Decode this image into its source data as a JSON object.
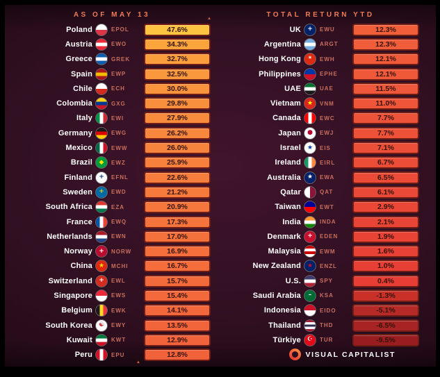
{
  "header": {
    "left": "AS OF MAY 13",
    "right": "TOTAL RETURN YTD"
  },
  "footer": {
    "brand": "VISUAL CAPITALIST"
  },
  "decor": {
    "top_arrow": "▲",
    "bottom_arrow": "▲"
  },
  "colors": {
    "background": "#311022",
    "header_text": "#ef7c58",
    "country_text": "#ffffff",
    "ticker_text": "#c86e5e",
    "pill_border": "#6f1d15",
    "pill_text": "#33130a"
  },
  "chart_data": {
    "type": "table",
    "title": "Country ETF Total Returns YTD",
    "as_of_label": "AS OF MAY 13",
    "value_label": "TOTAL RETURN YTD",
    "columns": [
      "country",
      "ticker",
      "total_return_ytd"
    ],
    "left": [
      {
        "country": "Poland",
        "ticker": "EPOL",
        "value": 47.6,
        "display": "47.6%",
        "color": "#fcc440",
        "flag": {
          "dir": "h",
          "colors": [
            "#ffffff",
            "#dc3545"
          ]
        }
      },
      {
        "country": "Austria",
        "ticker": "EWO",
        "value": 34.3,
        "display": "34.3%",
        "color": "#faa43c",
        "flag": {
          "dir": "h",
          "colors": [
            "#ed2939",
            "#ffffff",
            "#ed2939"
          ]
        }
      },
      {
        "country": "Greece",
        "ticker": "GREK",
        "value": 32.7,
        "display": "32.7%",
        "color": "#fa9d3c",
        "flag": {
          "dir": "h",
          "colors": [
            "#0d5eaf",
            "#ffffff",
            "#0d5eaf"
          ]
        }
      },
      {
        "country": "Spain",
        "ticker": "EWP",
        "value": 32.5,
        "display": "32.5%",
        "color": "#f9983c",
        "flag": {
          "dir": "h",
          "colors": [
            "#aa151b",
            "#f1bf00",
            "#aa151b"
          ]
        }
      },
      {
        "country": "Chile",
        "ticker": "ECH",
        "value": 30.0,
        "display": "30.0%",
        "color": "#f9933c",
        "flag": {
          "dir": "h",
          "colors": [
            "#ffffff",
            "#d52b1e"
          ]
        }
      },
      {
        "country": "Colombia",
        "ticker": "GXG",
        "value": 29.8,
        "display": "29.8%",
        "color": "#f88f3c",
        "flag": {
          "dir": "h",
          "colors": [
            "#fcd116",
            "#003893",
            "#ce1126"
          ]
        }
      },
      {
        "country": "Italy",
        "ticker": "EWI",
        "value": 27.9,
        "display": "27.9%",
        "color": "#f88b3c",
        "flag": {
          "dir": "v",
          "colors": [
            "#009246",
            "#ffffff",
            "#ce2b37"
          ]
        }
      },
      {
        "country": "Germany",
        "ticker": "EWG",
        "value": 26.2,
        "display": "26.2%",
        "color": "#f7873c",
        "flag": {
          "dir": "h",
          "colors": [
            "#1a1a1a",
            "#dd0000",
            "#ffce00"
          ]
        }
      },
      {
        "country": "Mexico",
        "ticker": "EWW",
        "value": 26.0,
        "display": "26.0%",
        "color": "#f7843c",
        "flag": {
          "dir": "v",
          "colors": [
            "#006847",
            "#ffffff",
            "#ce1126"
          ]
        }
      },
      {
        "country": "Brazil",
        "ticker": "EWZ",
        "value": 25.9,
        "display": "25.9%",
        "color": "#f7813c",
        "flag": {
          "dir": "h",
          "colors": [
            "#009c3b"
          ],
          "symbol": "◆",
          "symbolColor": "#ffdf00"
        }
      },
      {
        "country": "Finland",
        "ticker": "EFNL",
        "value": 22.6,
        "display": "22.6%",
        "color": "#f67d3c",
        "flag": {
          "dir": "h",
          "colors": [
            "#ffffff"
          ],
          "symbol": "+",
          "symbolColor": "#003580"
        }
      },
      {
        "country": "Sweden",
        "ticker": "EWD",
        "value": 21.2,
        "display": "21.2%",
        "color": "#f67a3c",
        "flag": {
          "dir": "h",
          "colors": [
            "#006aa7"
          ],
          "symbol": "+",
          "symbolColor": "#fecc00"
        }
      },
      {
        "country": "South Africa",
        "ticker": "EZA",
        "value": 20.9,
        "display": "20.9%",
        "color": "#f5773c",
        "flag": {
          "dir": "h",
          "colors": [
            "#de3831",
            "#ffffff",
            "#007a4d"
          ]
        }
      },
      {
        "country": "France",
        "ticker": "EWQ",
        "value": 17.3,
        "display": "17.3%",
        "color": "#f5743c",
        "flag": {
          "dir": "v",
          "colors": [
            "#0055a4",
            "#ffffff",
            "#ef4135"
          ]
        }
      },
      {
        "country": "Netherlands",
        "ticker": "EWN",
        "value": 17.0,
        "display": "17.0%",
        "color": "#f4713b",
        "flag": {
          "dir": "h",
          "colors": [
            "#ae1c28",
            "#ffffff",
            "#21468b"
          ]
        }
      },
      {
        "country": "Norway",
        "ticker": "NORW",
        "value": 16.9,
        "display": "16.9%",
        "color": "#f46f3b",
        "flag": {
          "dir": "h",
          "colors": [
            "#ba0c2f"
          ],
          "symbol": "+",
          "symbolColor": "#ffffff"
        }
      },
      {
        "country": "China",
        "ticker": "MCHI",
        "value": 16.7,
        "display": "16.7%",
        "color": "#f46d3b",
        "flag": {
          "dir": "h",
          "colors": [
            "#de2910"
          ],
          "symbol": "★",
          "symbolColor": "#ffde00"
        }
      },
      {
        "country": "Switzerland",
        "ticker": "EWL",
        "value": 15.7,
        "display": "15.7%",
        "color": "#f36b3b",
        "flag": {
          "dir": "h",
          "colors": [
            "#d52b1e"
          ],
          "symbol": "+",
          "symbolColor": "#ffffff"
        }
      },
      {
        "country": "Singapore",
        "ticker": "EWS",
        "value": 15.4,
        "display": "15.4%",
        "color": "#f3693b",
        "flag": {
          "dir": "h",
          "colors": [
            "#ed2939",
            "#ffffff"
          ]
        }
      },
      {
        "country": "Belgium",
        "ticker": "EWK",
        "value": 14.1,
        "display": "14.1%",
        "color": "#f2673b",
        "flag": {
          "dir": "v",
          "colors": [
            "#1a1a1a",
            "#fdda24",
            "#ef3340"
          ]
        }
      },
      {
        "country": "South Korea",
        "ticker": "EWY",
        "value": 13.5,
        "display": "13.5%",
        "color": "#f2653a",
        "flag": {
          "dir": "h",
          "colors": [
            "#ffffff"
          ],
          "symbol": "☯",
          "symbolColor": "#cd2e3a"
        }
      },
      {
        "country": "Kuwait",
        "ticker": "KWT",
        "value": 12.9,
        "display": "12.9%",
        "color": "#f1633a",
        "flag": {
          "dir": "h",
          "colors": [
            "#007a3d",
            "#ffffff",
            "#ce1126"
          ]
        }
      },
      {
        "country": "Peru",
        "ticker": "EPU",
        "value": 12.8,
        "display": "12.8%",
        "color": "#f1613a",
        "flag": {
          "dir": "v",
          "colors": [
            "#d91023",
            "#ffffff",
            "#d91023"
          ]
        }
      }
    ],
    "right": [
      {
        "country": "UK",
        "ticker": "EWU",
        "value": 12.3,
        "display": "12.3%",
        "color": "#f05f3a",
        "flag": {
          "dir": "h",
          "colors": [
            "#012169"
          ],
          "symbol": "+",
          "symbolColor": "#ffffff"
        }
      },
      {
        "country": "Argentina",
        "ticker": "ARGT",
        "value": 12.3,
        "display": "12.3%",
        "color": "#f05d3a",
        "flag": {
          "dir": "h",
          "colors": [
            "#74acdf",
            "#ffffff",
            "#74acdf"
          ]
        }
      },
      {
        "country": "Hong Kong",
        "ticker": "EWH",
        "value": 12.1,
        "display": "12.1%",
        "color": "#ef5b39",
        "flag": {
          "dir": "h",
          "colors": [
            "#de2910"
          ],
          "symbol": "*",
          "symbolColor": "#ffffff"
        }
      },
      {
        "country": "Philippines",
        "ticker": "EPHE",
        "value": 12.1,
        "display": "12.1%",
        "color": "#ef5939",
        "flag": {
          "dir": "h",
          "colors": [
            "#0038a8",
            "#ce1126"
          ]
        }
      },
      {
        "country": "UAE",
        "ticker": "UAE",
        "value": 11.5,
        "display": "11.5%",
        "color": "#ee5739",
        "flag": {
          "dir": "h",
          "colors": [
            "#00732f",
            "#ffffff",
            "#1a1a1a"
          ]
        }
      },
      {
        "country": "Vietnam",
        "ticker": "VNM",
        "value": 11.0,
        "display": "11.0%",
        "color": "#ee5539",
        "flag": {
          "dir": "h",
          "colors": [
            "#da251d"
          ],
          "symbol": "★",
          "symbolColor": "#ffff00"
        }
      },
      {
        "country": "Canada",
        "ticker": "EWC",
        "value": 7.7,
        "display": "7.7%",
        "color": "#ed5338",
        "flag": {
          "dir": "v",
          "colors": [
            "#ff0000",
            "#ffffff",
            "#ff0000"
          ]
        }
      },
      {
        "country": "Japan",
        "ticker": "EWJ",
        "value": 7.7,
        "display": "7.7%",
        "color": "#ed5138",
        "flag": {
          "dir": "h",
          "colors": [
            "#ffffff"
          ],
          "symbol": "●",
          "symbolColor": "#bc002d"
        }
      },
      {
        "country": "Israel",
        "ticker": "EIS",
        "value": 7.1,
        "display": "7.1%",
        "color": "#ec4f38",
        "flag": {
          "dir": "h",
          "colors": [
            "#ffffff"
          ],
          "symbol": "★",
          "symbolColor": "#0038b8"
        }
      },
      {
        "country": "Ireland",
        "ticker": "EIRL",
        "value": 6.7,
        "display": "6.7%",
        "color": "#eb4d37",
        "flag": {
          "dir": "v",
          "colors": [
            "#169b62",
            "#ffffff",
            "#ff883e"
          ]
        }
      },
      {
        "country": "Australia",
        "ticker": "EWA",
        "value": 6.5,
        "display": "6.5%",
        "color": "#eb4b37",
        "flag": {
          "dir": "h",
          "colors": [
            "#012169"
          ],
          "symbol": "★",
          "symbolColor": "#ffffff"
        }
      },
      {
        "country": "Qatar",
        "ticker": "QAT",
        "value": 6.1,
        "display": "6.1%",
        "color": "#ea4937",
        "flag": {
          "dir": "v",
          "colors": [
            "#ffffff",
            "#8a1538"
          ]
        }
      },
      {
        "country": "Taiwan",
        "ticker": "EWT",
        "value": 2.9,
        "display": "2.9%",
        "color": "#ea4736",
        "flag": {
          "dir": "h",
          "colors": [
            "#000095",
            "#fe0000"
          ]
        }
      },
      {
        "country": "India",
        "ticker": "INDA",
        "value": 2.1,
        "display": "2.1%",
        "color": "#e94536",
        "flag": {
          "dir": "h",
          "colors": [
            "#ff9933",
            "#ffffff",
            "#138808"
          ]
        }
      },
      {
        "country": "Denmark",
        "ticker": "EDEN",
        "value": 1.9,
        "display": "1.9%",
        "color": "#e84335",
        "flag": {
          "dir": "h",
          "colors": [
            "#c8102e"
          ],
          "symbol": "+",
          "symbolColor": "#ffffff"
        }
      },
      {
        "country": "Malaysia",
        "ticker": "EWM",
        "value": 1.6,
        "display": "1.6%",
        "color": "#e84135",
        "flag": {
          "dir": "h",
          "colors": [
            "#cc0001",
            "#ffffff",
            "#cc0001",
            "#ffffff"
          ]
        }
      },
      {
        "country": "New Zealand",
        "ticker": "ENZL",
        "value": 1.0,
        "display": "1.0%",
        "color": "#e73f35",
        "flag": {
          "dir": "h",
          "colors": [
            "#012169"
          ],
          "symbol": "★",
          "symbolColor": "#c8102e"
        }
      },
      {
        "country": "U.S.",
        "ticker": "SPY",
        "value": 0.4,
        "display": "0.4%",
        "color": "#e63d34",
        "flag": {
          "dir": "h",
          "colors": [
            "#3c3b6e",
            "#ffffff",
            "#b22234"
          ]
        }
      },
      {
        "country": "Saudi Arabia",
        "ticker": "KSA",
        "value": -1.3,
        "display": "-1.3%",
        "color": "#c93028",
        "flag": {
          "dir": "h",
          "colors": [
            "#006c35"
          ],
          "symbol": "–",
          "symbolColor": "#ffffff"
        }
      },
      {
        "country": "Indonesia",
        "ticker": "EIDO",
        "value": -5.1,
        "display": "-5.1%",
        "color": "#b52a26",
        "flag": {
          "dir": "h",
          "colors": [
            "#ce1126",
            "#ffffff"
          ]
        }
      },
      {
        "country": "Thailand",
        "ticker": "THD",
        "value": -6.5,
        "display": "-6.5%",
        "color": "#a82424",
        "flag": {
          "dir": "h",
          "colors": [
            "#a51931",
            "#f4f5f8",
            "#2d2a4a",
            "#f4f5f8",
            "#a51931"
          ]
        }
      },
      {
        "country": "Türkiye",
        "ticker": "TUR",
        "value": -9.5,
        "display": "-9.5%",
        "color": "#991d20",
        "flag": {
          "dir": "h",
          "colors": [
            "#e30a17"
          ],
          "symbol": "☪",
          "symbolColor": "#ffffff"
        }
      }
    ]
  }
}
